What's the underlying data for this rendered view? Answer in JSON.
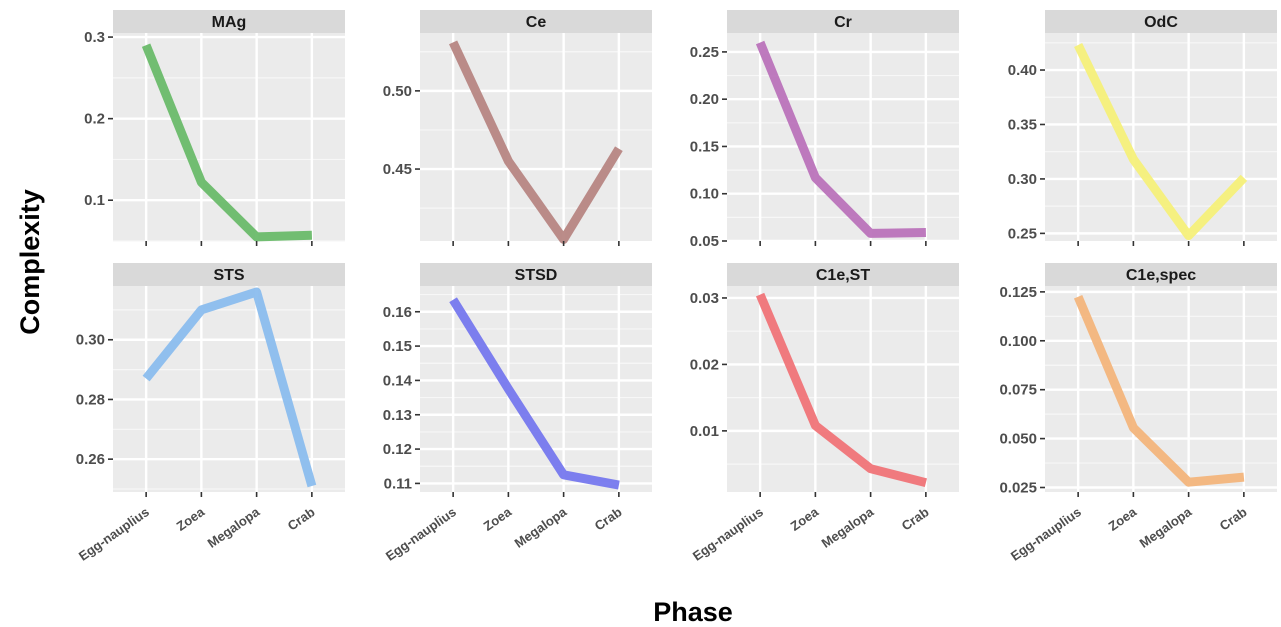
{
  "figure": {
    "ylabel": "Complexity",
    "xlabel": "Phase"
  },
  "chart_data": [
    {
      "type": "line",
      "title": "MAg",
      "color": "#6aba6a",
      "categories": [
        "Egg-nauplius",
        "Zoea",
        "Megalopa",
        "Crab"
      ],
      "values": [
        0.29,
        0.122,
        0.055,
        0.057
      ],
      "ylim": [
        0.05,
        0.305
      ],
      "yticks": [
        0.1,
        0.2,
        0.3
      ],
      "ytick_labels": [
        "0.1",
        "0.2",
        "0.3"
      ],
      "xlabel": "",
      "ylabel": ""
    },
    {
      "type": "line",
      "title": "Ce",
      "color": "#b78683",
      "categories": [
        "Egg-nauplius",
        "Zoea",
        "Megalopa",
        "Crab"
      ],
      "values": [
        0.531,
        0.455,
        0.405,
        0.463
      ],
      "ylim": [
        0.404,
        0.537
      ],
      "yticks": [
        0.45,
        0.5
      ],
      "ytick_labels": [
        "0.45",
        "0.50"
      ],
      "xlabel": "",
      "ylabel": ""
    },
    {
      "type": "line",
      "title": "Cr",
      "color": "#bb73bb",
      "categories": [
        "Egg-nauplius",
        "Zoea",
        "Megalopa",
        "Crab"
      ],
      "values": [
        0.26,
        0.117,
        0.058,
        0.059
      ],
      "ylim": [
        0.05,
        0.27
      ],
      "yticks": [
        0.05,
        0.1,
        0.15,
        0.2,
        0.25
      ],
      "ytick_labels": [
        "0.05",
        "0.10",
        "0.15",
        "0.20",
        "0.25"
      ],
      "xlabel": "",
      "ylabel": ""
    },
    {
      "type": "line",
      "title": "OdC",
      "color": "#f5f07a",
      "categories": [
        "Egg-nauplius",
        "Zoea",
        "Megalopa",
        "Crab"
      ],
      "values": [
        0.423,
        0.318,
        0.248,
        0.301
      ],
      "ylim": [
        0.243,
        0.434
      ],
      "yticks": [
        0.25,
        0.3,
        0.35,
        0.4
      ],
      "ytick_labels": [
        "0.25",
        "0.30",
        "0.35",
        "0.40"
      ],
      "xlabel": "",
      "ylabel": ""
    },
    {
      "type": "line",
      "title": "STS",
      "color": "#8bbdee",
      "categories": [
        "Egg-nauplius",
        "Zoea",
        "Megalopa",
        "Crab"
      ],
      "values": [
        0.287,
        0.31,
        0.316,
        0.251
      ],
      "ylim": [
        0.249,
        0.318
      ],
      "yticks": [
        0.26,
        0.28,
        0.3
      ],
      "ytick_labels": [
        "0.26",
        "0.28",
        "0.30"
      ],
      "xlabel": "",
      "ylabel": ""
    },
    {
      "type": "line",
      "title": "STSD",
      "color": "#7678ee",
      "categories": [
        "Egg-nauplius",
        "Zoea",
        "Megalopa",
        "Crab"
      ],
      "values": [
        0.1635,
        0.1375,
        0.1125,
        0.1095
      ],
      "ylim": [
        0.1075,
        0.1675
      ],
      "yticks": [
        0.11,
        0.12,
        0.13,
        0.14,
        0.15,
        0.16
      ],
      "ytick_labels": [
        "0.11",
        "0.12",
        "0.13",
        "0.14",
        "0.15",
        "0.16"
      ],
      "xlabel": "",
      "ylabel": ""
    },
    {
      "type": "line",
      "title": "C1e,ST",
      "color": "#f07478",
      "categories": [
        "Egg-nauplius",
        "Zoea",
        "Megalopa",
        "Crab"
      ],
      "values": [
        0.0305,
        0.0108,
        0.0043,
        0.0022
      ],
      "ylim": [
        0.0008,
        0.0318
      ],
      "yticks": [
        0.01,
        0.02,
        0.03
      ],
      "ytick_labels": [
        "0.01",
        "0.02",
        "0.03"
      ],
      "xlabel": "",
      "ylabel": ""
    },
    {
      "type": "line",
      "title": "C1e,spec",
      "color": "#f3b57c",
      "categories": [
        "Egg-nauplius",
        "Zoea",
        "Megalopa",
        "Crab"
      ],
      "values": [
        0.1225,
        0.0555,
        0.0277,
        0.0303
      ],
      "ylim": [
        0.0227,
        0.128
      ],
      "yticks": [
        0.025,
        0.05,
        0.075,
        0.1,
        0.125
      ],
      "ytick_labels": [
        "0.025",
        "0.050",
        "0.075",
        "0.100",
        "0.125"
      ],
      "xlabel": "",
      "ylabel": ""
    }
  ]
}
